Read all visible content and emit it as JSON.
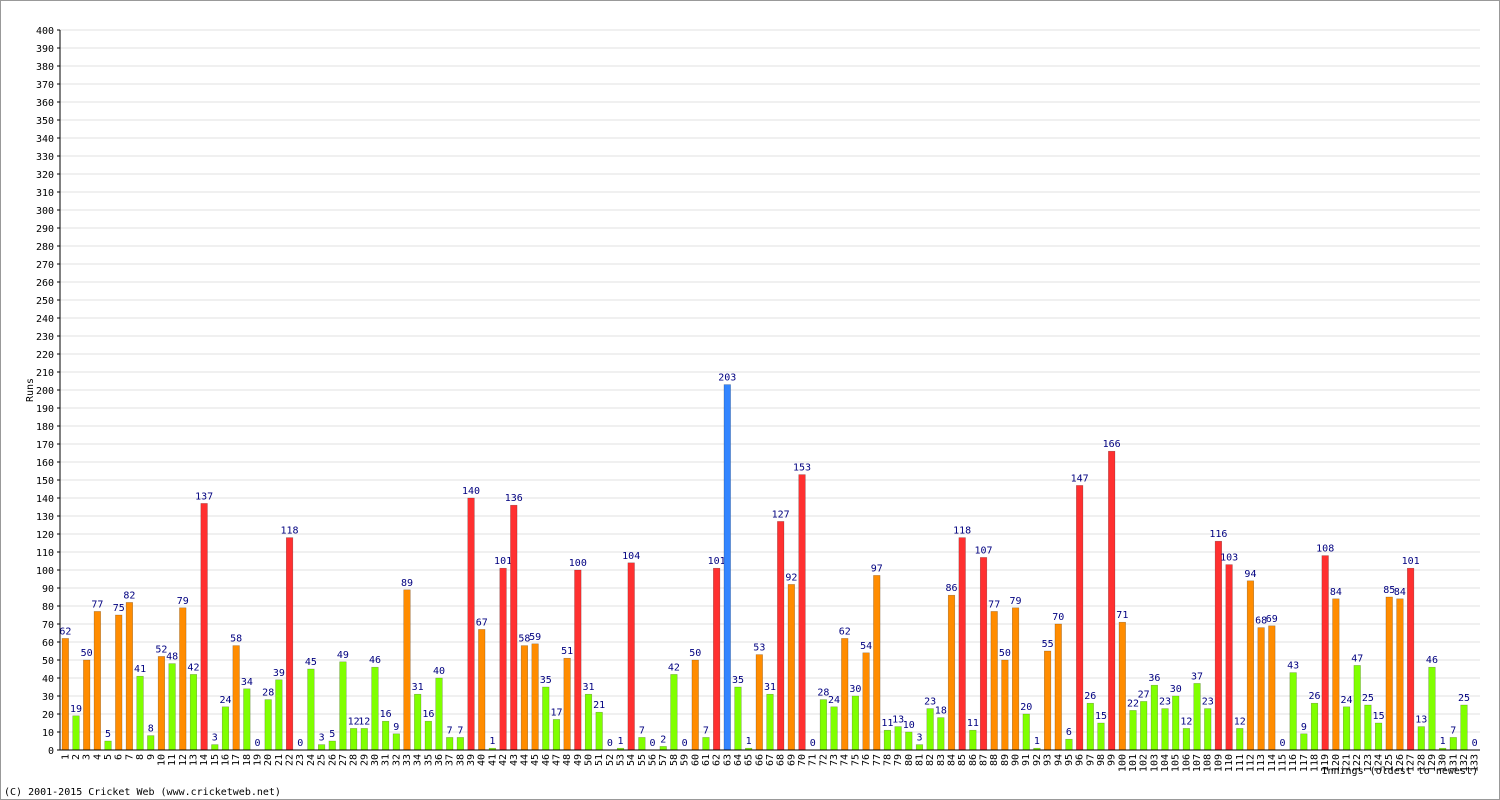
{
  "chart_data": {
    "type": "bar",
    "y_label": "Runs",
    "x_label": "Innings (oldest to newest)",
    "footer": "(C) 2001-2015 Cricket Web (www.cricketweb.net)",
    "categories": [
      "1",
      "2",
      "3",
      "4",
      "5",
      "6",
      "7",
      "8",
      "9",
      "10",
      "11",
      "12",
      "13",
      "14",
      "15",
      "16",
      "17",
      "18",
      "19",
      "20",
      "21",
      "22",
      "23",
      "24",
      "25",
      "26",
      "27",
      "28",
      "29",
      "30",
      "31",
      "32",
      "33",
      "34",
      "35",
      "36",
      "37",
      "38",
      "39",
      "40",
      "41",
      "42",
      "43",
      "44",
      "45",
      "46",
      "47",
      "48",
      "49",
      "50",
      "51",
      "52",
      "53",
      "54",
      "55",
      "56",
      "57",
      "58",
      "59",
      "60",
      "61",
      "62",
      "63",
      "64",
      "65",
      "66",
      "67",
      "68",
      "69",
      "70",
      "71",
      "72",
      "73",
      "74",
      "75",
      "76",
      "77",
      "78",
      "79",
      "80",
      "81",
      "82",
      "83",
      "84",
      "85",
      "86",
      "87",
      "88",
      "89",
      "90",
      "91",
      "92",
      "93",
      "94",
      "95",
      "96",
      "97",
      "98",
      "99",
      "100",
      "101",
      "102",
      "103",
      "104",
      "105",
      "106",
      "107",
      "108",
      "109",
      "110",
      "111",
      "112",
      "113",
      "114",
      "115",
      "116",
      "117",
      "118",
      "119",
      "120",
      "121",
      "122",
      "123",
      "124",
      "125",
      "126",
      "127",
      "128",
      "129",
      "130",
      "131",
      "132",
      "133"
    ],
    "values": [
      62,
      19,
      50,
      77,
      5,
      75,
      82,
      41,
      8,
      52,
      48,
      79,
      42,
      137,
      3,
      24,
      58,
      34,
      0,
      28,
      39,
      118,
      0,
      45,
      3,
      5,
      49,
      12,
      12,
      46,
      16,
      9,
      89,
      31,
      16,
      40,
      7,
      7,
      140,
      67,
      1,
      101,
      136,
      58,
      59,
      35,
      17,
      51,
      100,
      31,
      21,
      0,
      1,
      104,
      7,
      0,
      2,
      42,
      0,
      50,
      7,
      101,
      203,
      35,
      1,
      53,
      31,
      127,
      92,
      153,
      0,
      28,
      24,
      62,
      30,
      54,
      97,
      11,
      13,
      10,
      3,
      23,
      18,
      86,
      118,
      11,
      107,
      77,
      50,
      79,
      20,
      1,
      55,
      70,
      6,
      147,
      26,
      15,
      166,
      71,
      22,
      27,
      36,
      23,
      30,
      12,
      37,
      23,
      116,
      103,
      12,
      94,
      68,
      69,
      0,
      43,
      9,
      26,
      108,
      84,
      24,
      47,
      25,
      15,
      85,
      84,
      101,
      13,
      46,
      1,
      7,
      25,
      0
    ],
    "colors": [
      "#ff8c00",
      "#80ff00",
      "#ff8c00",
      "#ff8c00",
      "#80ff00",
      "#ff8c00",
      "#ff8c00",
      "#80ff00",
      "#80ff00",
      "#ff8c00",
      "#80ff00",
      "#ff8c00",
      "#80ff00",
      "#ff3030",
      "#80ff00",
      "#80ff00",
      "#ff8c00",
      "#80ff00",
      "#80ff00",
      "#80ff00",
      "#80ff00",
      "#ff3030",
      "#80ff00",
      "#80ff00",
      "#80ff00",
      "#80ff00",
      "#80ff00",
      "#80ff00",
      "#80ff00",
      "#80ff00",
      "#80ff00",
      "#80ff00",
      "#ff8c00",
      "#80ff00",
      "#80ff00",
      "#80ff00",
      "#80ff00",
      "#80ff00",
      "#ff3030",
      "#ff8c00",
      "#80ff00",
      "#ff3030",
      "#ff3030",
      "#ff8c00",
      "#ff8c00",
      "#80ff00",
      "#80ff00",
      "#ff8c00",
      "#ff3030",
      "#80ff00",
      "#80ff00",
      "#80ff00",
      "#80ff00",
      "#ff3030",
      "#80ff00",
      "#80ff00",
      "#80ff00",
      "#80ff00",
      "#80ff00",
      "#ff8c00",
      "#80ff00",
      "#ff3030",
      "#3385ff",
      "#80ff00",
      "#80ff00",
      "#ff8c00",
      "#80ff00",
      "#ff3030",
      "#ff8c00",
      "#ff3030",
      "#80ff00",
      "#80ff00",
      "#80ff00",
      "#ff8c00",
      "#80ff00",
      "#ff8c00",
      "#ff8c00",
      "#80ff00",
      "#80ff00",
      "#80ff00",
      "#80ff00",
      "#80ff00",
      "#80ff00",
      "#ff8c00",
      "#ff3030",
      "#80ff00",
      "#ff3030",
      "#ff8c00",
      "#ff8c00",
      "#ff8c00",
      "#80ff00",
      "#80ff00",
      "#ff8c00",
      "#ff8c00",
      "#80ff00",
      "#ff3030",
      "#80ff00",
      "#80ff00",
      "#ff3030",
      "#ff8c00",
      "#80ff00",
      "#80ff00",
      "#80ff00",
      "#80ff00",
      "#80ff00",
      "#80ff00",
      "#80ff00",
      "#80ff00",
      "#ff3030",
      "#ff3030",
      "#80ff00",
      "#ff8c00",
      "#ff8c00",
      "#ff8c00",
      "#80ff00",
      "#80ff00",
      "#80ff00",
      "#80ff00",
      "#ff3030",
      "#ff8c00",
      "#80ff00",
      "#80ff00",
      "#80ff00",
      "#80ff00",
      "#ff8c00",
      "#ff8c00",
      "#ff3030",
      "#80ff00",
      "#80ff00",
      "#80ff00",
      "#80ff00",
      "#80ff00",
      "#80ff00"
    ],
    "ylim": [
      0,
      400
    ],
    "yticks": [
      0,
      10,
      20,
      30,
      40,
      50,
      60,
      70,
      80,
      90,
      100,
      110,
      120,
      130,
      140,
      150,
      160,
      170,
      180,
      190,
      200,
      210,
      220,
      230,
      240,
      250,
      260,
      270,
      280,
      290,
      300,
      310,
      320,
      330,
      340,
      350,
      360,
      370,
      380,
      390,
      400
    ],
    "grid": true
  }
}
